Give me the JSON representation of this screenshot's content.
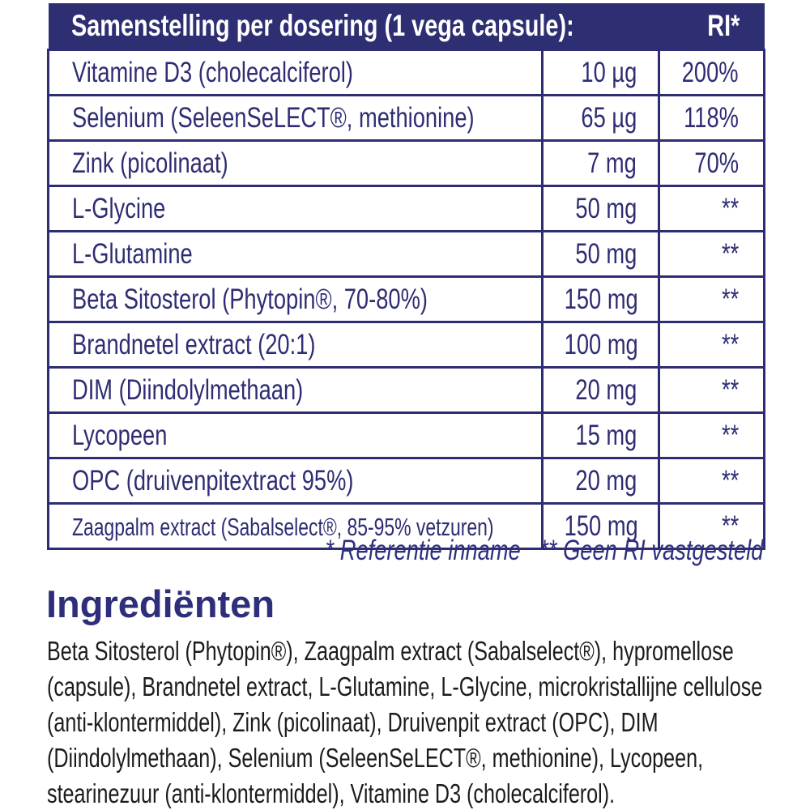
{
  "colors": {
    "header_background": "#2e2e72",
    "table_text": "#2e2d73",
    "table_border": "#2e2d73",
    "footnote_text": "#2f2f80",
    "heading_text": "#2e2e7a",
    "paragraph_text": "#1c1c1a",
    "page_background": "#ffffff"
  },
  "table": {
    "header": {
      "title": "Samenstelling per dosering (1 vega capsule):",
      "ri": "RI*"
    },
    "rows": [
      {
        "name": "Vitamine D3 (cholecalciferol)",
        "amount": "10 µg",
        "ri": "200%"
      },
      {
        "name": "Selenium (SeleenSeLECT®, methionine)",
        "amount": "65 µg",
        "ri": "118%"
      },
      {
        "name": "Zink (picolinaat)",
        "amount": "7 mg",
        "ri": "70%"
      },
      {
        "name": "L-Glycine",
        "amount": "50 mg",
        "ri": "**"
      },
      {
        "name": "L-Glutamine",
        "amount": "50 mg",
        "ri": "**"
      },
      {
        "name": "Beta Sitosterol (Phytopin®, 70-80%)",
        "amount": "150 mg",
        "ri": "**"
      },
      {
        "name": "Brandnetel extract (20:1)",
        "amount": "100 mg",
        "ri": "**"
      },
      {
        "name": "DIM (Diindolylmethaan)",
        "amount": "20 mg",
        "ri": "**"
      },
      {
        "name": "Lycopeen",
        "amount": "15 mg",
        "ri": "**"
      },
      {
        "name": "OPC (druivenpitextract 95%)",
        "amount": "20 mg",
        "ri": "**"
      },
      {
        "name": "Zaagpalm extract (Sabalselect®, 85-95% vetzuren)",
        "amount": "150 mg",
        "ri": "**"
      }
    ]
  },
  "notes": {
    "reference": "* Referentie inname",
    "no_ri": "** Geen RI vastgesteld"
  },
  "ingredients": {
    "heading": "Ingrediënten",
    "text": "Beta Sitosterol (Phytopin®), Zaagpalm extract (Sabalselect®), hypromellose (capsule), Brandnetel extract, L-Glutamine, L-Glycine, microkristallijne cellulose (anti-klontermiddel), Zink (picolinaat), Druivenpit extract (OPC), DIM (Diindolylmethaan), Selenium (SeleenSeLECT®, methionine), Lycopeen, stearinezuur (anti-klontermiddel), Vitamine D3 (cholecalciferol)."
  }
}
